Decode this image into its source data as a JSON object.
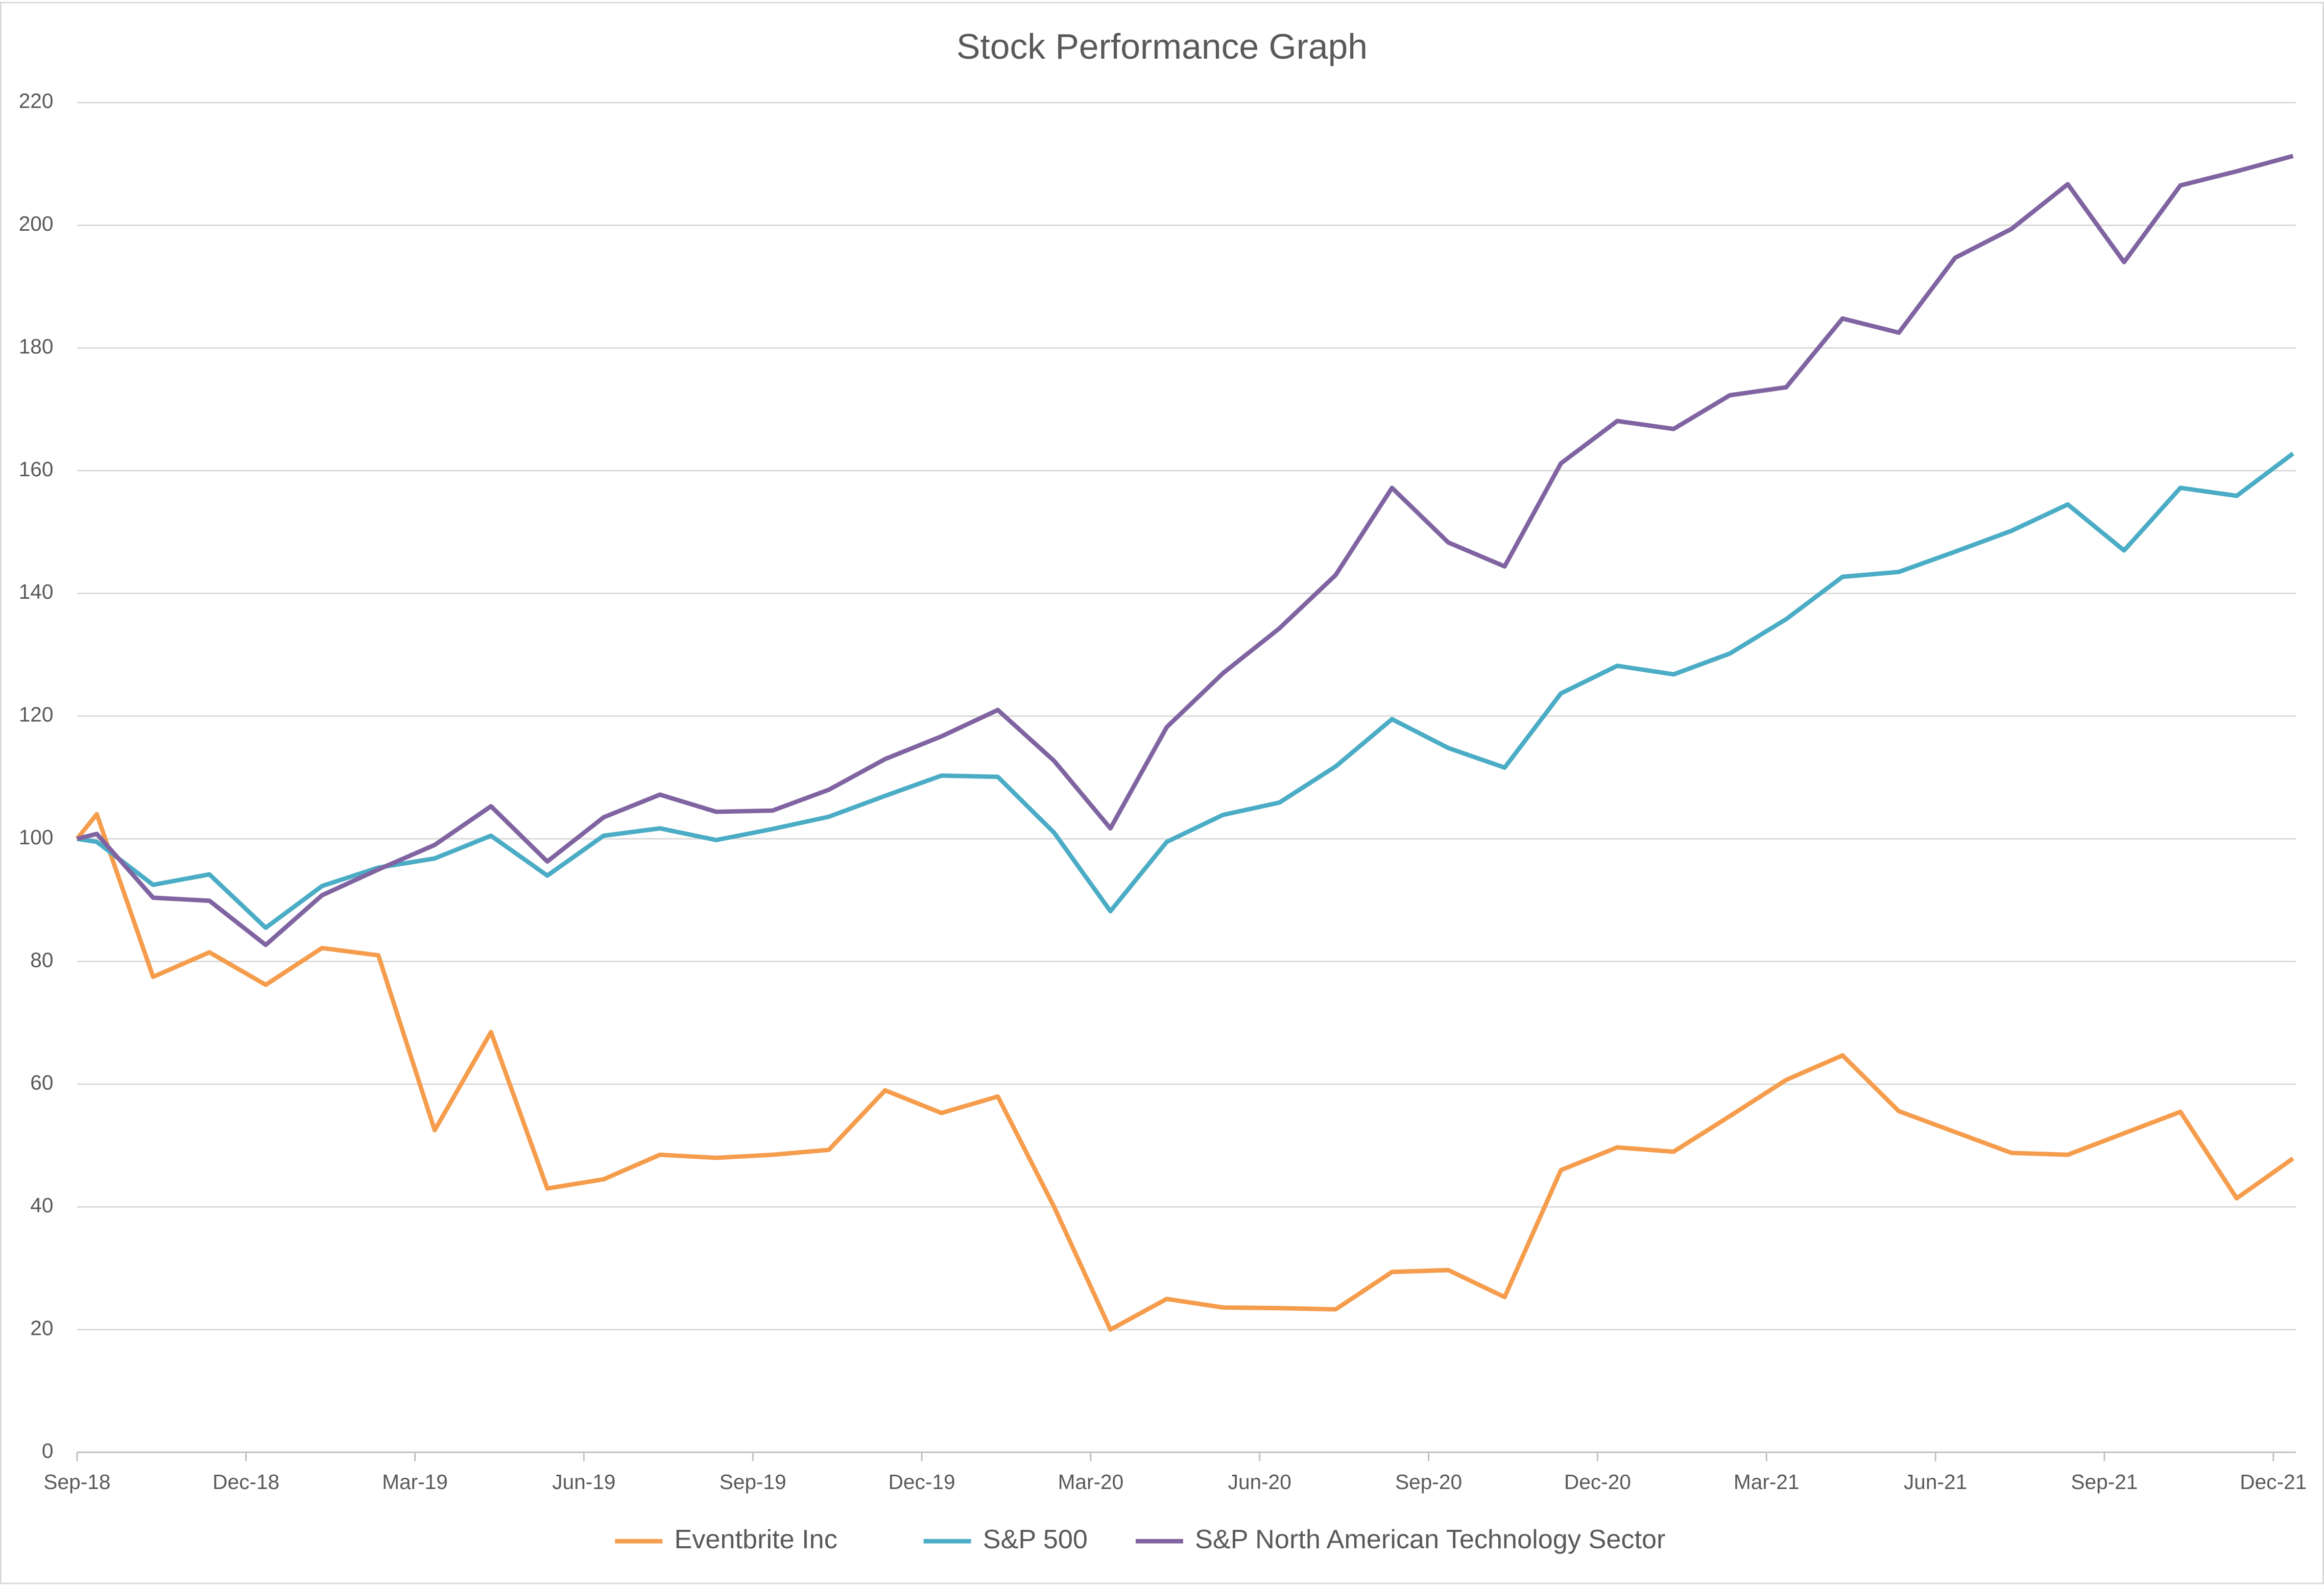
{
  "chart_data": {
    "type": "line",
    "title": "Stock Performance Graph",
    "x": [
      0,
      0.35,
      1.35,
      2.35,
      3.35,
      4.35,
      5.35,
      6.35,
      7.35,
      8.35,
      9.35,
      10.35,
      11.35,
      12.35,
      13.35,
      14.35,
      15.35,
      16.35,
      17.35,
      18.35,
      19.35,
      20.35,
      21.35,
      22.35,
      23.35,
      24.35,
      25.35,
      26.35,
      27.35,
      28.35,
      29.35,
      30.35,
      31.35,
      32.35,
      33.35,
      34.35,
      35.35,
      36.35,
      37.35,
      38.35,
      39.35
    ],
    "series": [
      {
        "name": "Eventbrite Inc",
        "color": "#f59d4d",
        "values": [
          100,
          104,
          77.5,
          81.5,
          76.2,
          82.2,
          81,
          52.5,
          68.5,
          43,
          44.5,
          48.5,
          48,
          48.5,
          49.3,
          59,
          55.3,
          58,
          40,
          20,
          25,
          23.6,
          23.5,
          23.3,
          29.4,
          29.7,
          25.3,
          46,
          49.7,
          49,
          54.8,
          60.7,
          64.7,
          55.6,
          52.2,
          48.8,
          48.5,
          52,
          55.5,
          41.4,
          47.9
        ]
      },
      {
        "name": "S&P 500",
        "color": "#4bacc6",
        "values": [
          100,
          99.5,
          92.5,
          94.2,
          85.5,
          92.3,
          95.3,
          96.8,
          100.5,
          94,
          100.5,
          101.7,
          99.8,
          101.6,
          103.6,
          107,
          110.3,
          110.1,
          101,
          88.2,
          99.5,
          103.9,
          105.9,
          111.8,
          119.5,
          114.8,
          111.6,
          123.7,
          128.2,
          126.8,
          130.2,
          135.8,
          142.7,
          143.5,
          146.8,
          150.2,
          154.5,
          147,
          157.2,
          155.9,
          162.8
        ]
      },
      {
        "name": "S&P North American Technology Sector",
        "color": "#8064a2",
        "values": [
          100,
          100.8,
          90.4,
          89.9,
          82.7,
          90.8,
          95,
          99,
          105.3,
          96.3,
          103.5,
          107.2,
          104.4,
          104.6,
          108,
          113,
          116.7,
          121,
          112.7,
          101.7,
          118.2,
          127,
          134.3,
          143,
          157.2,
          148.3,
          144.4,
          161.2,
          168.1,
          166.8,
          172.3,
          173.6,
          184.8,
          182.5,
          194.7,
          199.4,
          206.7,
          194,
          206.5,
          208.8,
          211.3
        ]
      }
    ],
    "xlim": [
      0,
      39.4
    ],
    "xticks": [
      {
        "value": 0,
        "label": "Sep-18"
      },
      {
        "value": 3,
        "label": "Dec-18"
      },
      {
        "value": 6,
        "label": "Mar-19"
      },
      {
        "value": 9,
        "label": "Jun-19"
      },
      {
        "value": 12,
        "label": "Sep-19"
      },
      {
        "value": 15,
        "label": "Dec-19"
      },
      {
        "value": 18,
        "label": "Mar-20"
      },
      {
        "value": 21,
        "label": "Jun-20"
      },
      {
        "value": 24,
        "label": "Sep-20"
      },
      {
        "value": 27,
        "label": "Dec-20"
      },
      {
        "value": 30,
        "label": "Mar-21"
      },
      {
        "value": 33,
        "label": "Jun-21"
      },
      {
        "value": 36,
        "label": "Sep-21"
      },
      {
        "value": 39,
        "label": "Dec-21"
      }
    ],
    "ylim": [
      0,
      220
    ],
    "yticks": [
      0,
      20,
      40,
      60,
      80,
      100,
      120,
      140,
      160,
      180,
      200,
      220
    ],
    "grid": true,
    "legend": "bottom"
  }
}
